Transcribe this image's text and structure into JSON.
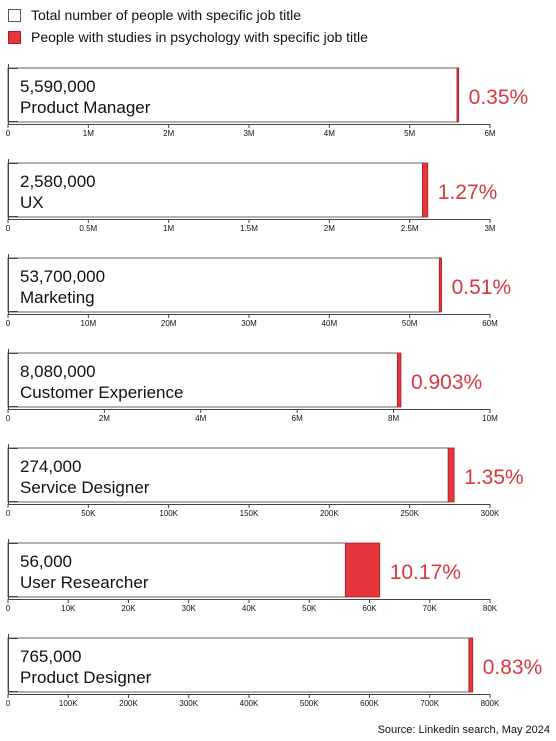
{
  "legend": {
    "total_label": "Total number of people with specific job title",
    "psych_label": "People with studies in psychology with specific job title"
  },
  "colors": {
    "psych": "#e5363d",
    "psych_edge": "#b01e25",
    "pct_text": "#d9393e",
    "bar_border": "#666666"
  },
  "source": "Source: Linkedin search, May 2024",
  "chart_data": [
    {
      "type": "bar",
      "count_label": "5,590,000",
      "title": "Product Manager",
      "total": 5590000,
      "psych_pct": 0.35,
      "pct_label": "0.35%",
      "xlim": [
        0,
        6000000
      ],
      "ticks": [
        "0",
        "1M",
        "2M",
        "3M",
        "4M",
        "5M",
        "6M"
      ]
    },
    {
      "type": "bar",
      "count_label": "2,580,000",
      "title": "UX",
      "total": 2580000,
      "psych_pct": 1.27,
      "pct_label": "1.27%",
      "xlim": [
        0,
        3000000
      ],
      "ticks": [
        "0",
        "0.5M",
        "1M",
        "1.5M",
        "2M",
        "2.5M",
        "3M"
      ]
    },
    {
      "type": "bar",
      "count_label": "53,700,000",
      "title": "Marketing",
      "total": 53700000,
      "psych_pct": 0.51,
      "pct_label": "0.51%",
      "xlim": [
        0,
        60000000
      ],
      "ticks": [
        "0",
        "10M",
        "20M",
        "30M",
        "40M",
        "50M",
        "60M"
      ]
    },
    {
      "type": "bar",
      "count_label": "8,080,000",
      "title": "Customer Experience",
      "total": 8080000,
      "psych_pct": 0.903,
      "pct_label": "0.903%",
      "xlim": [
        0,
        10000000
      ],
      "ticks": [
        "0",
        "2M",
        "4M",
        "6M",
        "8M",
        "10M"
      ]
    },
    {
      "type": "bar",
      "count_label": "274,000",
      "title": "Service Designer",
      "total": 274000,
      "psych_pct": 1.35,
      "pct_label": "1.35%",
      "xlim": [
        0,
        300000
      ],
      "ticks": [
        "0",
        "50K",
        "100K",
        "150K",
        "200K",
        "250K",
        "300K"
      ]
    },
    {
      "type": "bar",
      "count_label": "56,000",
      "title": "User Researcher",
      "total": 56000,
      "psych_pct": 10.17,
      "pct_label": "10.17%",
      "xlim": [
        0,
        80000
      ],
      "ticks": [
        "0",
        "10K",
        "20K",
        "30K",
        "40K",
        "50K",
        "60K",
        "70K",
        "80K"
      ]
    },
    {
      "type": "bar",
      "count_label": "765,000",
      "title": "Product Designer",
      "total": 765000,
      "psych_pct": 0.83,
      "pct_label": "0.83%",
      "xlim": [
        0,
        800000
      ],
      "ticks": [
        "0",
        "100K",
        "200K",
        "300K",
        "400K",
        "500K",
        "600K",
        "700K",
        "800K"
      ]
    }
  ]
}
